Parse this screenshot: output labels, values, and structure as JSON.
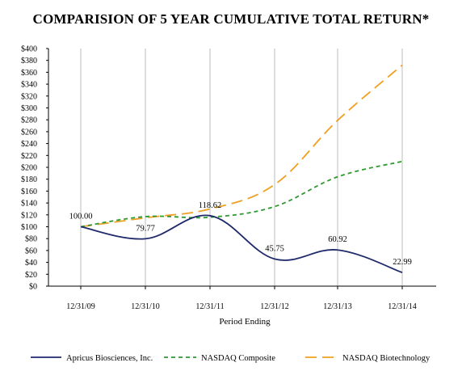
{
  "chart_data": {
    "type": "line",
    "title": "COMPARISION OF 5 YEAR CUMULATIVE TOTAL RETURN*",
    "xlabel": "Period Ending",
    "ylabel": "",
    "categories": [
      "12/31/09",
      "12/31/10",
      "12/31/11",
      "12/31/12",
      "12/31/13",
      "12/31/14"
    ],
    "ylim": [
      0,
      400
    ],
    "yticks": [
      "$0",
      "$20",
      "$40",
      "$60",
      "$80",
      "$100",
      "$120",
      "$140",
      "$160",
      "$180",
      "$200",
      "$220",
      "$240",
      "$260",
      "$280",
      "$300",
      "$320",
      "$340",
      "$360",
      "$380",
      "$400"
    ],
    "grid": "vertical",
    "legend_position": "bottom",
    "series": [
      {
        "name": "Apricus Biosciences, Inc.",
        "values": [
          100.0,
          79.77,
          118.62,
          45.75,
          60.92,
          22.99
        ],
        "data_labels": [
          "100.00",
          "79.77",
          "118.62",
          "45.75",
          "60.92",
          "22.99"
        ],
        "color": "#1f2a6b",
        "style": "solid"
      },
      {
        "name": "NASDAQ Composite",
        "values": [
          100,
          117,
          116,
          134,
          184,
          210
        ],
        "color": "#2e9a2e",
        "style": "dashed"
      },
      {
        "name": "NASDAQ Biotechnology",
        "values": [
          100,
          115,
          130,
          171,
          279,
          372
        ],
        "color": "#f0a020",
        "style": "longdash"
      }
    ]
  }
}
